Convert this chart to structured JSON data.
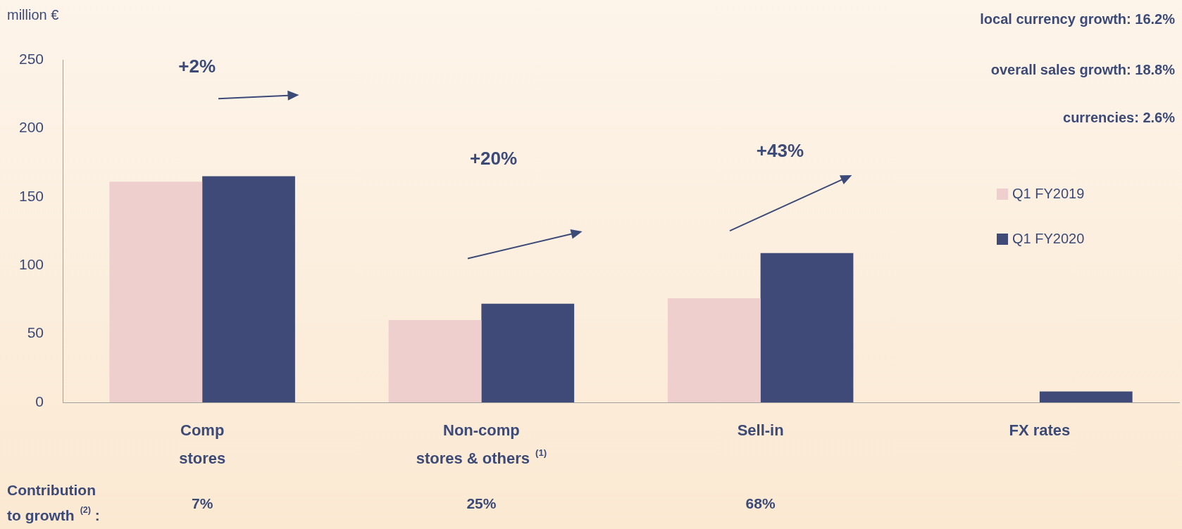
{
  "chart_data": {
    "type": "bar",
    "ylabel": "million €",
    "categories": [
      "Comp\nstores",
      "Non-comp\nstores & others$^{(1)}$",
      "Sell-in",
      "FX rates"
    ],
    "series": [
      {
        "name": "Q1 FY2019",
        "color": "#efcfcd",
        "values": [
          161,
          60,
          76,
          null
        ]
      },
      {
        "name": "Q1 FY2020",
        "color": "#3f4a78",
        "values": [
          165,
          72,
          109,
          8
        ]
      }
    ],
    "ylim": [
      0,
      250
    ],
    "yticks": [
      0,
      50,
      100,
      150,
      200,
      250
    ],
    "grid": false,
    "legend": "right",
    "annotations": [
      "local currency growth: 16.2%",
      "overall sales growth: 18.8%",
      "currencies: 2.6%",
      "+2%",
      "+20%",
      "+43%",
      "Contribution\nto growth$^{(2)}$ :",
      "7%",
      "25%",
      "68%"
    ]
  }
}
